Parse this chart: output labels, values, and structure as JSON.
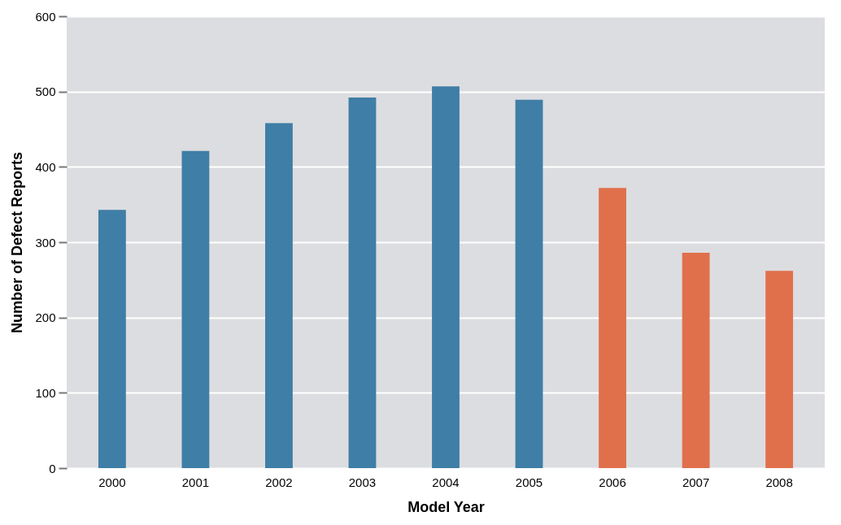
{
  "chart_data": {
    "type": "bar",
    "xlabel": "Model Year",
    "ylabel": "Number of Defect Reports",
    "categories": [
      "2000",
      "2001",
      "2002",
      "2003",
      "2004",
      "2005",
      "2006",
      "2007",
      "2008"
    ],
    "values": [
      343,
      421,
      458,
      492,
      507,
      489,
      372,
      286,
      262
    ],
    "colors": [
      "#3f7ea6",
      "#3f7ea6",
      "#3f7ea6",
      "#3f7ea6",
      "#3f7ea6",
      "#3f7ea6",
      "#e0704c",
      "#e0704c",
      "#e0704c"
    ],
    "ylim": [
      0,
      600
    ],
    "yticks": [
      0,
      100,
      200,
      300,
      400,
      500,
      600
    ],
    "grid": "y"
  }
}
